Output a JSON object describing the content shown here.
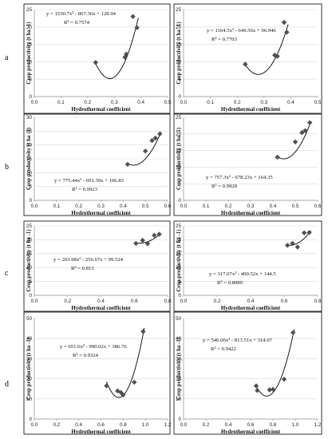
{
  "row_labels": [
    "a",
    "b",
    "c",
    "d"
  ],
  "colors": {
    "point": "#505050",
    "curve": "#000000",
    "grid": "#d9d9d9",
    "axis": "#8c8c8c",
    "frame": "#000000"
  },
  "chart_data": [
    {
      "type": "scatter",
      "xlabel": "Hydrothermal coefficient",
      "ylabel": "Crop productivity  (t ha -1)",
      "xlim": [
        0,
        0.5
      ],
      "xticks": [
        0,
        0.1,
        0.2,
        0.3,
        0.4,
        0.5
      ],
      "xdec": 1,
      "ylim": [
        0,
        25
      ],
      "yticks": [
        0,
        5,
        10,
        15,
        20,
        25
      ],
      "ydec": 0,
      "grid": "horizontal",
      "x": [
        0.23,
        0.34,
        0.345,
        0.37,
        0.385
      ],
      "y": [
        9.8,
        11.3,
        12.2,
        23.0,
        19.8
      ],
      "trendline": {
        "a": 1530.7,
        "b": -867.36,
        "c": 128.04,
        "x_range": [
          0.23,
          0.39
        ]
      },
      "equation": "y = 1530.7x² - 867.36x + 128.04",
      "r2": "R² = 0.7574"
    },
    {
      "type": "scatter",
      "xlabel": "Hydrothermal coefficient",
      "ylabel": "Crop productivity  (t ha -1)",
      "xlim": [
        0,
        0.5
      ],
      "xticks": [
        0,
        0.1,
        0.2,
        0.3,
        0.4,
        0.5
      ],
      "xdec": 1,
      "ylim": [
        0,
        25
      ],
      "yticks": [
        0,
        5,
        10,
        15,
        20,
        25
      ],
      "ydec": 0,
      "grid": "horizontal",
      "x": [
        0.23,
        0.34,
        0.35,
        0.375,
        0.385
      ],
      "y": [
        9.3,
        11.9,
        11.6,
        21.3,
        18.5
      ],
      "trendline": {
        "a": 1164.5,
        "b": -649.56,
        "c": 96.946,
        "x_range": [
          0.23,
          0.39
        ]
      },
      "equation": "y = 1164.5x² - 649.56x + 96.946",
      "r2": "R² = 0.7703"
    },
    {
      "type": "scatter",
      "xlabel": "Hydrothermal coefficient",
      "ylabel": "Crop productivity  (t ha -1)",
      "xlim": [
        0,
        0.6
      ],
      "xticks": [
        0,
        0.1,
        0.2,
        0.3,
        0.4,
        0.5,
        0.6
      ],
      "xdec": 1,
      "ylim": [
        0,
        30
      ],
      "yticks": [
        0,
        5,
        10,
        15,
        20,
        25,
        30
      ],
      "ydec": 0,
      "grid": "horizontal",
      "x": [
        0.42,
        0.5,
        0.53,
        0.545,
        0.565
      ],
      "y": [
        13.0,
        17.8,
        21.6,
        22.5,
        24.0
      ],
      "trendline": {
        "a": 775.44,
        "b": -691.39,
        "c": 166.83,
        "x_range": [
          0.42,
          0.57
        ]
      },
      "equation": "y = 775.44x² - 691.39x + 166.83",
      "r2": "R² = 0.9923"
    },
    {
      "type": "scatter",
      "xlabel": "Hydrothermal coefficient",
      "ylabel": "Crop productivity  (t ha -1)",
      "xlim": [
        0,
        0.6
      ],
      "xticks": [
        0,
        0.1,
        0.2,
        0.3,
        0.4,
        0.5,
        0.6
      ],
      "xdec": 1,
      "ylim": [
        0,
        25
      ],
      "yticks": [
        0,
        5,
        10,
        15,
        20,
        25
      ],
      "ydec": 0,
      "grid": "horizontal",
      "x": [
        0.42,
        0.5,
        0.53,
        0.545,
        0.565
      ],
      "y": [
        13.0,
        17.6,
        20.4,
        21.0,
        23.4
      ],
      "trendline": {
        "a": 757.3,
        "b": -678.23,
        "c": 164.35,
        "x_range": [
          0.42,
          0.57
        ]
      },
      "equation": "y = 757.3x² - 678.23x + 164.35",
      "r2": "R² = 0.9928"
    },
    {
      "type": "scatter",
      "xlabel": "Hydrothermal coefficient",
      "ylabel": "Crop productivity  (t ha -1)",
      "xlim": [
        0,
        0.8
      ],
      "xticks": [
        0,
        0.2,
        0.4,
        0.6,
        0.8
      ],
      "xdec": 1,
      "ylim": [
        0,
        25
      ],
      "yticks": [
        0,
        5,
        10,
        15,
        20,
        25
      ],
      "ydec": 0,
      "grid": "horizontal",
      "x": [
        0.61,
        0.65,
        0.68,
        0.72,
        0.75
      ],
      "y": [
        18.7,
        19.8,
        18.6,
        21.6,
        22.0
      ],
      "trendline": {
        "a": 203.98,
        "b": -256.67,
        "c": 99.524,
        "x_range": [
          0.61,
          0.76
        ]
      },
      "equation": "y = 203.98x² - 256.67x + 99.524",
      "r2": "R² = 0.813"
    },
    {
      "type": "scatter",
      "xlabel": "Hydrothermal coefficient",
      "ylabel": "Crop productivity  (t ha -1)",
      "xlim": [
        0,
        0.8
      ],
      "xticks": [
        0,
        0.2,
        0.4,
        0.6,
        0.8
      ],
      "xdec": 1,
      "ylim": [
        0,
        25
      ],
      "yticks": [
        0,
        5,
        10,
        15,
        20,
        25
      ],
      "ydec": 0,
      "grid": "horizontal",
      "x": [
        0.62,
        0.65,
        0.68,
        0.72,
        0.75
      ],
      "y": [
        18.0,
        18.7,
        17.4,
        22.5,
        22.6
      ],
      "trendline": {
        "a": 317.07,
        "b": -400.52,
        "c": 144.5,
        "x_range": [
          0.61,
          0.76
        ]
      },
      "equation": "y = 317.07x² - 400.52x + 144.5",
      "r2": "R² = 0.8089"
    },
    {
      "type": "scatter",
      "xlabel": "Hydrothermal coefficient",
      "ylabel": "Crop productivity  (t ha -1)",
      "xlim": [
        0,
        1.2
      ],
      "xticks": [
        0,
        0.2,
        0.4,
        0.6,
        0.8,
        1.0,
        1.2
      ],
      "xdec": 1,
      "ylim": [
        0,
        50
      ],
      "yticks": [
        0,
        10,
        20,
        30,
        40,
        50
      ],
      "ydec": 0,
      "grid": "horizontal",
      "x": [
        0.65,
        0.75,
        0.78,
        0.8,
        0.9,
        0.98
      ],
      "y": [
        16.5,
        14.0,
        13.2,
        12.0,
        18.3,
        43.5
      ],
      "trendline": {
        "a": 651.6,
        "b": -990.02,
        "c": 386.76,
        "x_range": [
          0.65,
          0.99
        ]
      },
      "equation": "y = 651.6x² - 990.02x + 386.76",
      "r2": "R² = 0.9324"
    },
    {
      "type": "scatter",
      "xlabel": "Hydrothermal coefficient",
      "ylabel": "Crop productivity  (t ha -1)",
      "xlim": [
        0,
        1.2
      ],
      "xticks": [
        0,
        0.2,
        0.4,
        0.6,
        0.8,
        1.0,
        1.2
      ],
      "xdec": 1,
      "ylim": [
        0,
        50
      ],
      "yticks": [
        0,
        10,
        20,
        30,
        40,
        50
      ],
      "ydec": 0,
      "grid": "horizontal",
      "x": [
        0.65,
        0.66,
        0.77,
        0.8,
        0.9,
        0.98
      ],
      "y": [
        16.5,
        14.2,
        14.5,
        14.8,
        19.8,
        43.0
      ],
      "trendline": {
        "a": 546.66,
        "b": -813.51,
        "c": 314.07,
        "x_range": [
          0.65,
          0.99
        ]
      },
      "equation": "y = 546.66x² - 813.51x + 314.07",
      "r2": "R² = 0.9422"
    }
  ]
}
